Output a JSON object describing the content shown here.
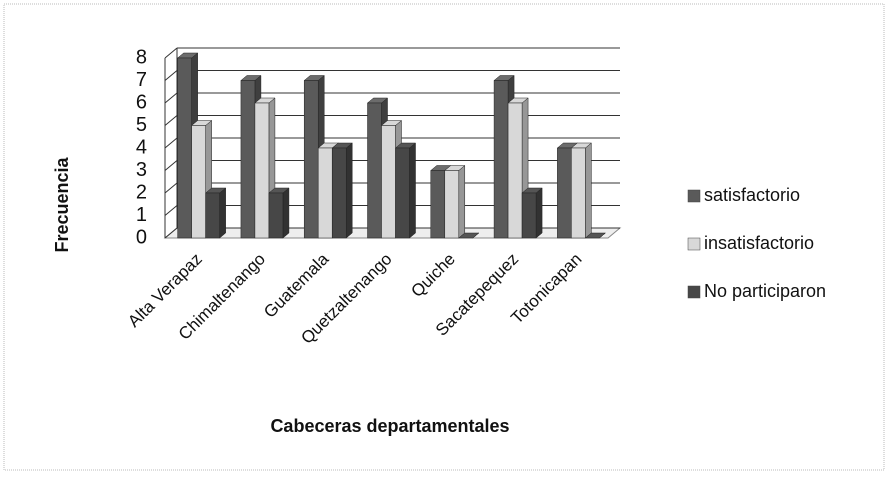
{
  "chart_data": {
    "type": "bar3d",
    "categories": [
      "Alta Verapaz",
      "Chimaltenango",
      "Guatemala",
      "Quetzaltenango",
      "Quiche",
      "Sacatepequez",
      "Totonicapan"
    ],
    "series": [
      {
        "name": "satisfactorio",
        "color": "#5a5a5a",
        "values": [
          8,
          7,
          7,
          6,
          3,
          7,
          4
        ]
      },
      {
        "name": "insatisfactorio",
        "color": "#d8d8d8",
        "values": [
          5,
          6,
          4,
          5,
          3,
          6,
          4
        ]
      },
      {
        "name": "No participaron",
        "color": "#474747",
        "values": [
          2,
          2,
          4,
          4,
          0,
          2,
          0
        ]
      }
    ],
    "ylim": [
      0,
      8
    ],
    "yticks": [
      0,
      1,
      2,
      3,
      4,
      5,
      6,
      7,
      8
    ],
    "grid": true,
    "legend": "right",
    "ylabel": "Frecuencia",
    "xlabel": "Cabeceras departamentales"
  }
}
